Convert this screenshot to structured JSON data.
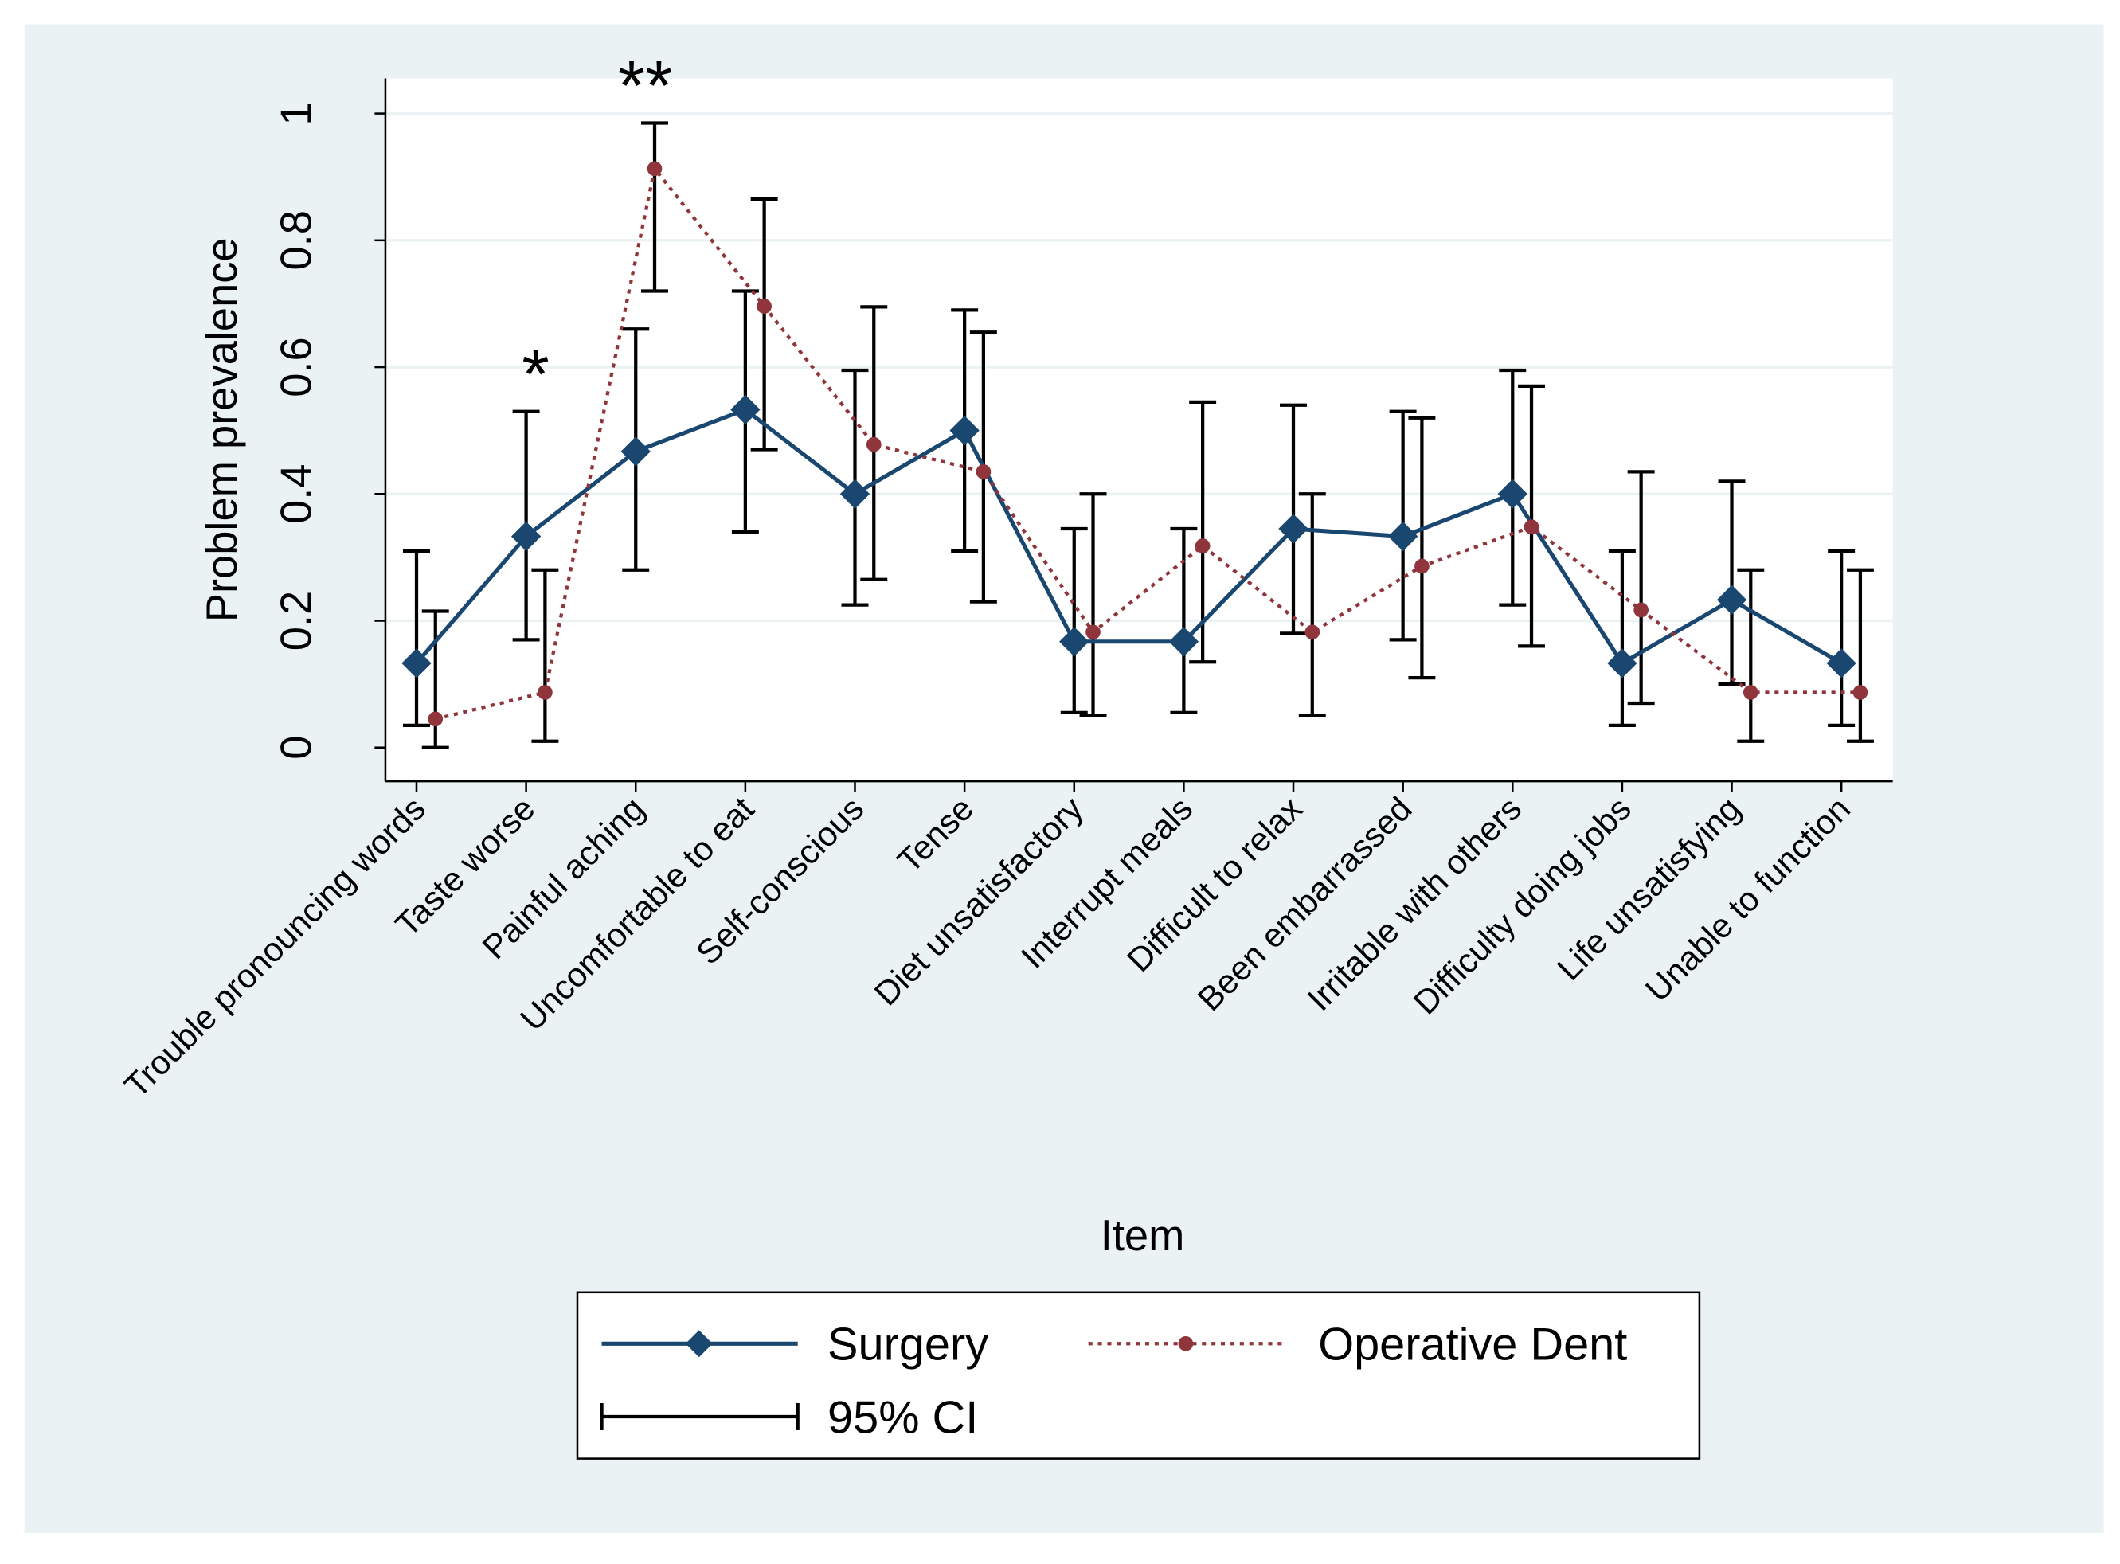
{
  "chart_data": {
    "type": "line",
    "x_label": "Item",
    "y_label": "Problem prevalence",
    "categories": [
      "Trouble pronouncing words",
      "Taste worse",
      "Painful aching",
      "Uncomfortable to eat",
      "Self-conscious",
      "Tense",
      "Diet unsatisfactory",
      "Interrupt meals",
      "Difficult to relax",
      "Been embarrassed",
      "Irritable with others",
      "Difficulty doing jobs",
      "Life unsatisfying",
      "Unable to function"
    ],
    "series": [
      {
        "name": "Surgery",
        "color": "#1a476f",
        "marker": "diamond",
        "dash": "solid",
        "values": [
          0.133,
          0.333,
          0.467,
          0.533,
          0.4,
          0.5,
          0.167,
          0.167,
          0.345,
          0.333,
          0.4,
          0.133,
          0.233,
          0.133
        ],
        "ci_low": [
          0.035,
          0.17,
          0.28,
          0.34,
          0.225,
          0.31,
          0.055,
          0.055,
          0.18,
          0.17,
          0.225,
          0.035,
          0.1,
          0.035
        ],
        "ci_high": [
          0.31,
          0.53,
          0.66,
          0.72,
          0.595,
          0.69,
          0.345,
          0.345,
          0.54,
          0.53,
          0.595,
          0.31,
          0.42,
          0.31
        ]
      },
      {
        "name": "Operative Dent",
        "color": "#90353b",
        "marker": "circle",
        "dash": "dotted",
        "values": [
          0.045,
          0.087,
          0.913,
          0.696,
          0.478,
          0.435,
          0.182,
          0.318,
          0.182,
          0.286,
          0.348,
          0.217,
          0.087,
          0.087
        ],
        "ci_low": [
          0,
          0.01,
          0.72,
          0.47,
          0.265,
          0.23,
          0.05,
          0.135,
          0.05,
          0.11,
          0.16,
          0.07,
          0.01,
          0.01
        ],
        "ci_high": [
          0.215,
          0.28,
          0.985,
          0.865,
          0.695,
          0.655,
          0.4,
          0.545,
          0.4,
          0.52,
          0.57,
          0.435,
          0.28,
          0.28
        ]
      }
    ],
    "ci_label": "95% CI",
    "annotations": [
      {
        "text": "*",
        "category": "Taste worse"
      },
      {
        "text": "**",
        "category": "Painful aching"
      }
    ],
    "ylim": [
      0,
      1
    ],
    "yticks": [
      0,
      0.2,
      0.4,
      0.6,
      0.8,
      1
    ],
    "grid": true
  }
}
